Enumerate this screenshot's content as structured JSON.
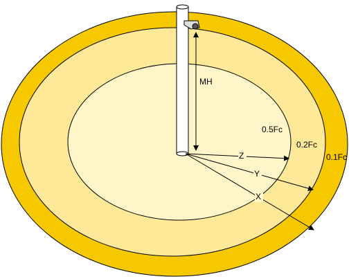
{
  "labels": {
    "mounting_height": "MH",
    "inner_zone": "0.5Fc",
    "middle_zone": "0.2Fc",
    "outer_zone": "0.1Fc",
    "distance_z": "Z",
    "distance_y": "Y",
    "distance_x": "X"
  }
}
